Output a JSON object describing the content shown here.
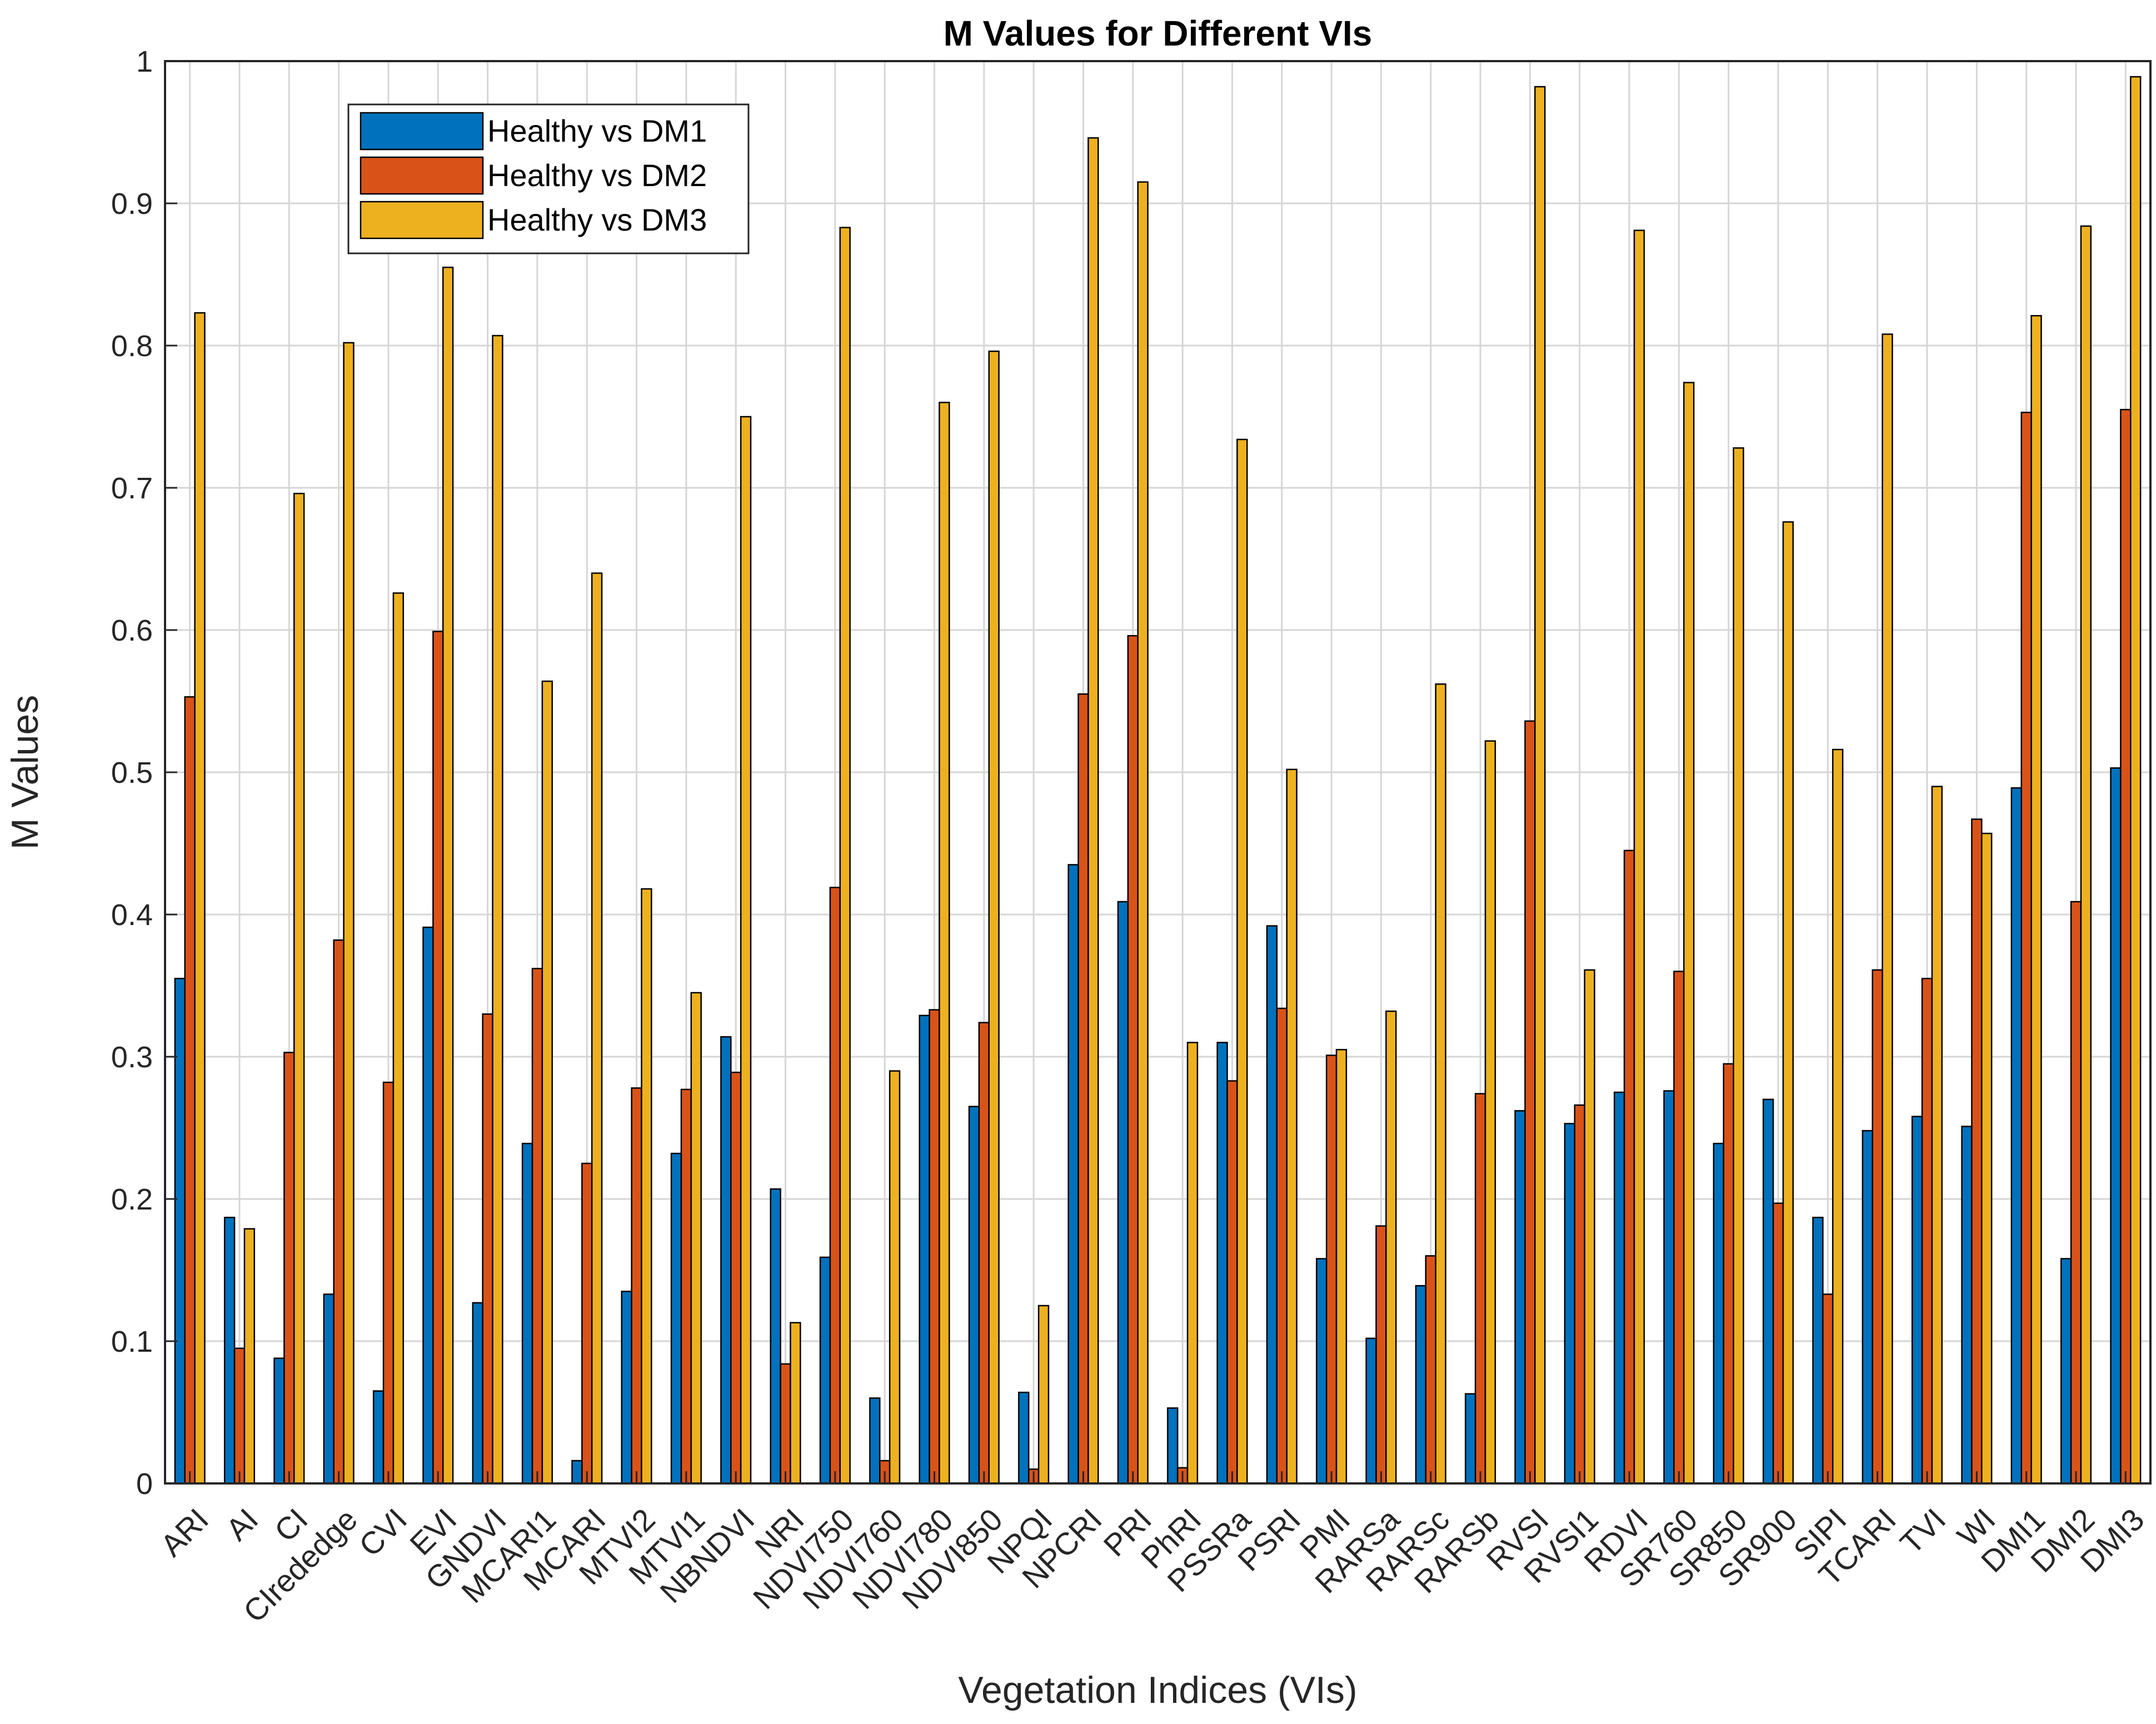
{
  "chart_data": {
    "type": "bar",
    "title": "M Values for Different VIs",
    "xlabel": "Vegetation Indices (VIs)",
    "ylabel": "M Values",
    "ylim": [
      0,
      1
    ],
    "yticks": [
      "0",
      "0.1",
      "0.2",
      "0.3",
      "0.4",
      "0.5",
      "0.6",
      "0.7",
      "0.8",
      "0.9",
      "1"
    ],
    "grid": true,
    "legend_position": "top-left",
    "categories": [
      "ARI",
      "AI",
      "CI",
      "CIrededge",
      "CVI",
      "EVI",
      "GNDVI",
      "MCARI1",
      "MCARI",
      "MTVI2",
      "MTVI1",
      "NBNDVI",
      "NRI",
      "NDVI750",
      "NDVI760",
      "NDVI780",
      "NDVI850",
      "NPQI",
      "NPCRI",
      "PRI",
      "PhRI",
      "PSSRa",
      "PSRI",
      "PMI",
      "RARSa",
      "RARSc",
      "RARSb",
      "RVSI",
      "RVSI1",
      "RDVI",
      "SR760",
      "SR850",
      "SR900",
      "SIPI",
      "TCARI",
      "TVI",
      "WI",
      "DMI1",
      "DMI2",
      "DMI3"
    ],
    "series": [
      {
        "name": "Healthy vs DM1",
        "color": "#0072BD",
        "values": [
          0.355,
          0.187,
          0.088,
          0.133,
          0.065,
          0.391,
          0.127,
          0.239,
          0.016,
          0.135,
          0.232,
          0.314,
          0.207,
          0.159,
          0.06,
          0.329,
          0.265,
          0.064,
          0.435,
          0.409,
          0.053,
          0.31,
          0.392,
          0.158,
          0.102,
          0.139,
          0.063,
          0.262,
          0.253,
          0.275,
          0.276,
          0.239,
          0.27,
          0.187,
          0.248,
          0.258,
          0.251,
          0.489,
          0.158,
          0.503
        ]
      },
      {
        "name": "Healthy vs DM2",
        "color": "#D95319",
        "values": [
          0.553,
          0.095,
          0.303,
          0.382,
          0.282,
          0.599,
          0.33,
          0.362,
          0.225,
          0.278,
          0.277,
          0.289,
          0.084,
          0.419,
          0.016,
          0.333,
          0.324,
          0.01,
          0.555,
          0.596,
          0.011,
          0.283,
          0.334,
          0.301,
          0.181,
          0.16,
          0.274,
          0.536,
          0.266,
          0.445,
          0.36,
          0.295,
          0.197,
          0.133,
          0.361,
          0.355,
          0.467,
          0.753,
          0.409,
          0.755
        ]
      },
      {
        "name": "Healthy vs DM3",
        "color": "#EDB120",
        "values": [
          0.823,
          0.179,
          0.696,
          0.802,
          0.626,
          0.855,
          0.807,
          0.564,
          0.64,
          0.418,
          0.345,
          0.75,
          0.113,
          0.883,
          0.29,
          0.76,
          0.796,
          0.125,
          0.946,
          0.915,
          0.31,
          0.734,
          0.502,
          0.305,
          0.332,
          0.562,
          0.522,
          0.982,
          0.361,
          0.881,
          0.774,
          0.728,
          0.676,
          0.516,
          0.808,
          0.49,
          0.457,
          0.821,
          0.884,
          0.989
        ]
      }
    ]
  }
}
